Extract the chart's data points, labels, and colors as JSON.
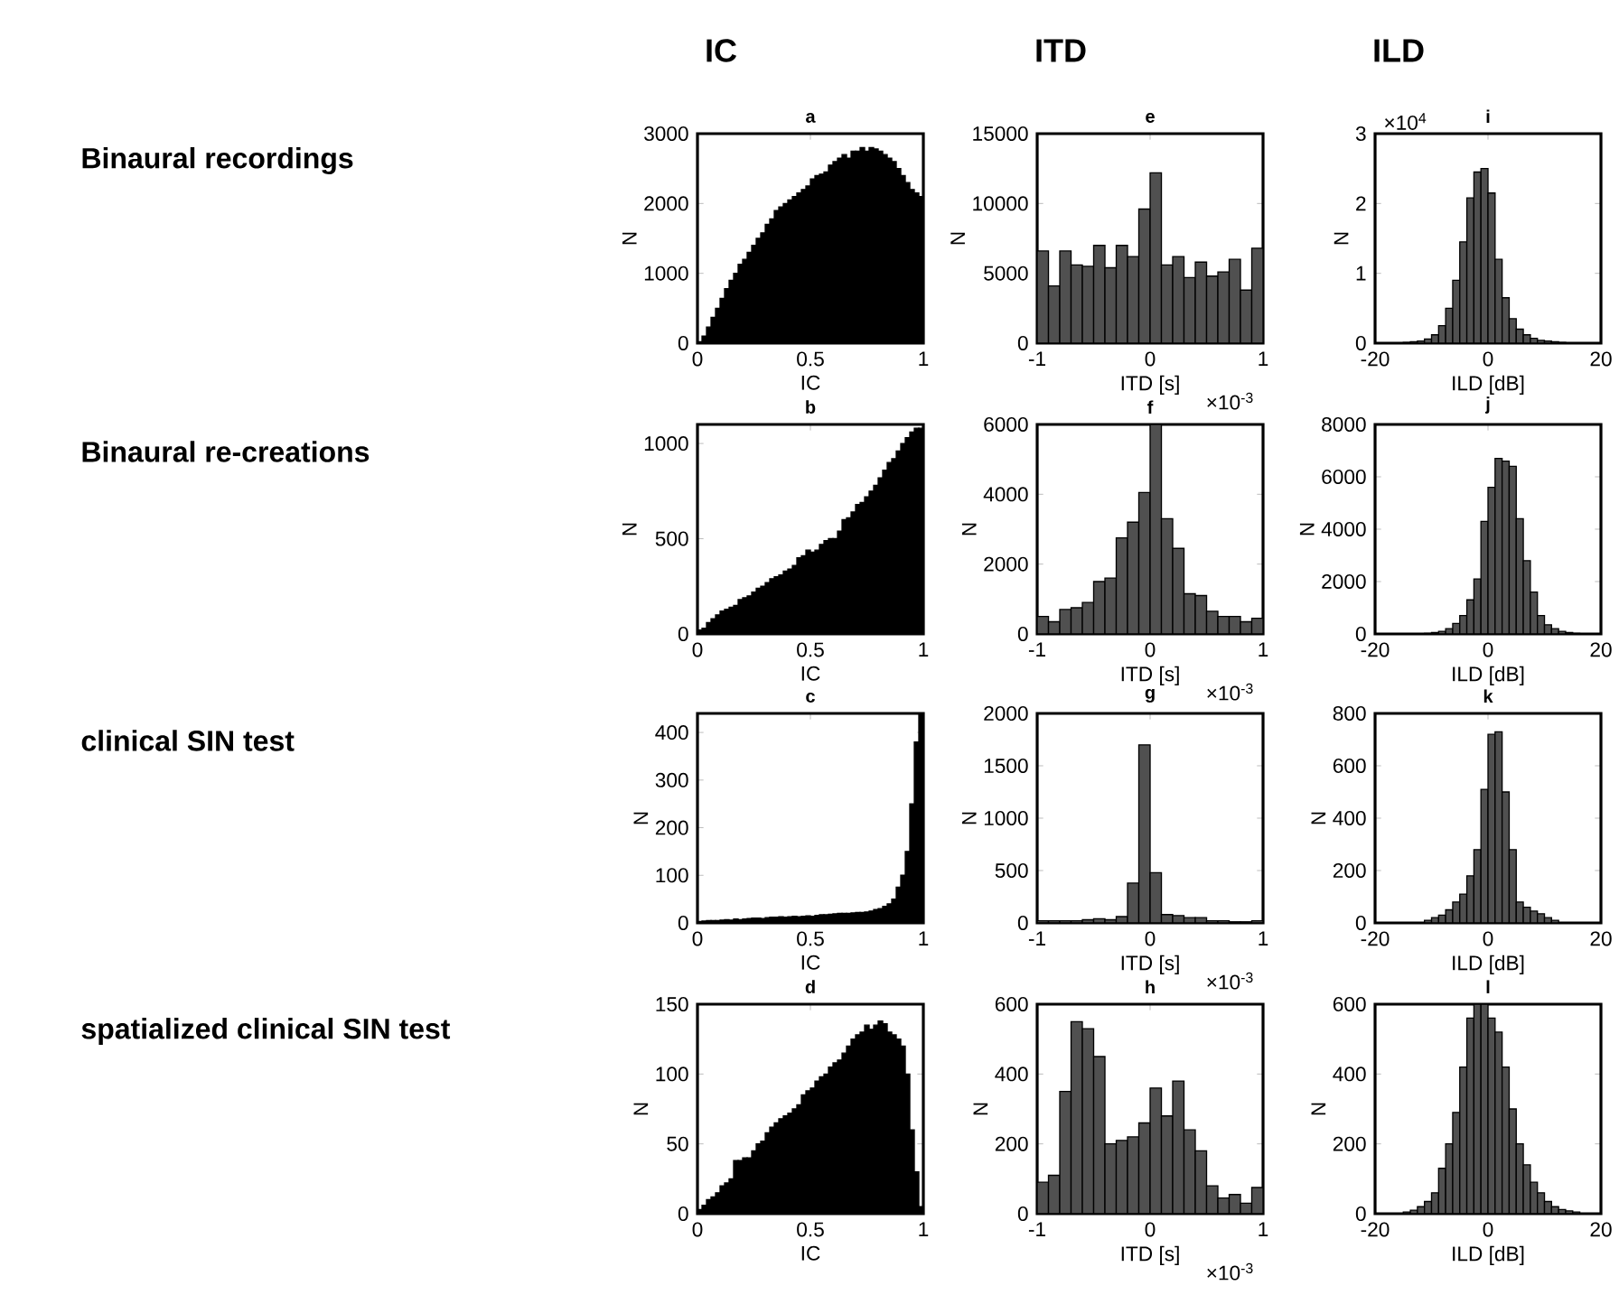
{
  "chart_data": [
    {
      "type": "histogram",
      "title": "a",
      "xlabel": "IC",
      "ylabel": "N",
      "color": "#000000",
      "xlim": [
        0,
        1
      ],
      "ylim": [
        0,
        3000
      ],
      "xticks": [
        0,
        0.5,
        1
      ],
      "yticks": [
        0,
        1000,
        2000,
        3000
      ],
      "bins": [
        0,
        0.02,
        0.04,
        0.06,
        0.08,
        0.1,
        0.12,
        0.14,
        0.16,
        0.18,
        0.2,
        0.22,
        0.24,
        0.26,
        0.28,
        0.3,
        0.32,
        0.34,
        0.36,
        0.38,
        0.4,
        0.42,
        0.44,
        0.46,
        0.48,
        0.5,
        0.52,
        0.54,
        0.56,
        0.58,
        0.6,
        0.62,
        0.64,
        0.66,
        0.68,
        0.7,
        0.72,
        0.74,
        0.76,
        0.78,
        0.8,
        0.82,
        0.84,
        0.86,
        0.88,
        0.9,
        0.92,
        0.94,
        0.96,
        0.98,
        1
      ],
      "values": [
        20,
        100,
        230,
        370,
        500,
        640,
        780,
        900,
        1000,
        1130,
        1200,
        1300,
        1400,
        1500,
        1580,
        1700,
        1780,
        1900,
        1950,
        2000,
        2050,
        2100,
        2150,
        2200,
        2250,
        2350,
        2400,
        2420,
        2450,
        2550,
        2600,
        2650,
        2700,
        2650,
        2750,
        2750,
        2800,
        2750,
        2800,
        2780,
        2750,
        2700,
        2650,
        2600,
        2500,
        2400,
        2300,
        2200,
        2150,
        2100
      ]
    },
    {
      "type": "histogram",
      "title": "b",
      "xlabel": "IC",
      "ylabel": "N",
      "color": "#000000",
      "xlim": [
        0,
        1
      ],
      "ylim": [
        0,
        1100
      ],
      "xticks": [
        0,
        0.5,
        1
      ],
      "yticks": [
        0,
        500,
        1000
      ],
      "bins": [
        0,
        0.02,
        0.04,
        0.06,
        0.08,
        0.1,
        0.12,
        0.14,
        0.16,
        0.18,
        0.2,
        0.22,
        0.24,
        0.26,
        0.28,
        0.3,
        0.32,
        0.34,
        0.36,
        0.38,
        0.4,
        0.42,
        0.44,
        0.46,
        0.48,
        0.5,
        0.52,
        0.54,
        0.56,
        0.58,
        0.6,
        0.62,
        0.64,
        0.66,
        0.68,
        0.7,
        0.72,
        0.74,
        0.76,
        0.78,
        0.8,
        0.82,
        0.84,
        0.86,
        0.88,
        0.9,
        0.92,
        0.94,
        0.96,
        0.98,
        1
      ],
      "values": [
        20,
        30,
        60,
        80,
        100,
        120,
        130,
        140,
        150,
        180,
        190,
        200,
        220,
        240,
        250,
        270,
        290,
        300,
        310,
        330,
        340,
        360,
        400,
        410,
        440,
        430,
        440,
        470,
        490,
        500,
        500,
        540,
        600,
        610,
        640,
        680,
        690,
        720,
        750,
        780,
        820,
        860,
        900,
        920,
        960,
        1000,
        1030,
        1060,
        1080,
        1080
      ]
    },
    {
      "type": "histogram",
      "title": "c",
      "xlabel": "IC",
      "ylabel": "N",
      "color": "#000000",
      "xlim": [
        0,
        1
      ],
      "ylim": [
        0,
        440
      ],
      "xticks": [
        0,
        0.5,
        1
      ],
      "yticks": [
        0,
        100,
        200,
        300,
        400
      ],
      "bins": [
        0,
        0.02,
        0.04,
        0.06,
        0.08,
        0.1,
        0.12,
        0.14,
        0.16,
        0.18,
        0.2,
        0.22,
        0.24,
        0.26,
        0.28,
        0.3,
        0.32,
        0.34,
        0.36,
        0.38,
        0.4,
        0.42,
        0.44,
        0.46,
        0.48,
        0.5,
        0.52,
        0.54,
        0.56,
        0.58,
        0.6,
        0.62,
        0.64,
        0.66,
        0.68,
        0.7,
        0.72,
        0.74,
        0.76,
        0.78,
        0.8,
        0.82,
        0.84,
        0.86,
        0.88,
        0.9,
        0.92,
        0.94,
        0.96,
        0.98,
        1
      ],
      "values": [
        3,
        4,
        5,
        5,
        5,
        6,
        7,
        6,
        8,
        7,
        8,
        9,
        10,
        10,
        9,
        11,
        12,
        12,
        13,
        12,
        13,
        14,
        13,
        14,
        15,
        14,
        16,
        17,
        17,
        18,
        19,
        20,
        20,
        20,
        21,
        22,
        22,
        23,
        25,
        28,
        30,
        35,
        40,
        50,
        75,
        100,
        150,
        250,
        380,
        440
      ]
    },
    {
      "type": "histogram",
      "title": "d",
      "xlabel": "IC",
      "ylabel": "N",
      "color": "#000000",
      "xlim": [
        0,
        1
      ],
      "ylim": [
        0,
        150
      ],
      "xticks": [
        0,
        0.5,
        1
      ],
      "yticks": [
        0,
        50,
        100,
        150
      ],
      "bins": [
        0,
        0.02,
        0.04,
        0.06,
        0.08,
        0.1,
        0.12,
        0.14,
        0.16,
        0.18,
        0.2,
        0.22,
        0.24,
        0.26,
        0.28,
        0.3,
        0.32,
        0.34,
        0.36,
        0.38,
        0.4,
        0.42,
        0.44,
        0.46,
        0.48,
        0.5,
        0.52,
        0.54,
        0.56,
        0.58,
        0.6,
        0.62,
        0.64,
        0.66,
        0.68,
        0.7,
        0.72,
        0.74,
        0.76,
        0.78,
        0.8,
        0.82,
        0.84,
        0.86,
        0.88,
        0.9,
        0.92,
        0.94,
        0.96,
        0.98,
        1
      ],
      "values": [
        3,
        6,
        10,
        12,
        15,
        20,
        22,
        25,
        38,
        38,
        40,
        40,
        45,
        50,
        52,
        58,
        62,
        65,
        68,
        70,
        72,
        75,
        78,
        85,
        88,
        90,
        95,
        98,
        100,
        105,
        108,
        110,
        115,
        120,
        125,
        128,
        130,
        135,
        132,
        135,
        138,
        136,
        130,
        128,
        125,
        120,
        100,
        60,
        30,
        5
      ]
    },
    {
      "type": "histogram",
      "title": "e",
      "xlabel": "ITD [s]",
      "ylabel": "N",
      "color": "#505050",
      "xlim": [
        -1,
        1
      ],
      "ylim": [
        0,
        15000
      ],
      "xticks": [
        -1,
        0,
        1
      ],
      "yticks": [
        0,
        5000,
        10000,
        15000
      ],
      "annotations": [
        "×10$^{-3}$"
      ],
      "bins": [
        -1,
        -0.9,
        -0.8,
        -0.7,
        -0.6,
        -0.5,
        -0.4,
        -0.3,
        -0.2,
        -0.1,
        0,
        0.1,
        0.2,
        0.3,
        0.4,
        0.5,
        0.6,
        0.7,
        0.8,
        0.9,
        1
      ],
      "values": [
        6600,
        4100,
        6600,
        5600,
        5500,
        7000,
        5400,
        7000,
        6200,
        9600,
        12200,
        5600,
        6200,
        4700,
        5800,
        4800,
        5100,
        6000,
        3800,
        6800
      ]
    },
    {
      "type": "histogram",
      "title": "f",
      "xlabel": "ITD [s]",
      "ylabel": "N",
      "color": "#505050",
      "xlim": [
        -1,
        1
      ],
      "ylim": [
        0,
        6000
      ],
      "xticks": [
        -1,
        0,
        1
      ],
      "yticks": [
        0,
        2000,
        4000,
        6000
      ],
      "annotations": [
        "×10$^{-3}$"
      ],
      "bins": [
        -1,
        -0.9,
        -0.8,
        -0.7,
        -0.6,
        -0.5,
        -0.4,
        -0.3,
        -0.2,
        -0.1,
        0,
        0.1,
        0.2,
        0.3,
        0.4,
        0.5,
        0.6,
        0.7,
        0.8,
        0.9,
        1
      ],
      "values": [
        500,
        350,
        700,
        750,
        900,
        1500,
        1600,
        2750,
        3200,
        4050,
        6000,
        3300,
        2450,
        1150,
        1100,
        650,
        500,
        500,
        350,
        450
      ]
    },
    {
      "type": "histogram",
      "title": "g",
      "xlabel": "ITD [s]",
      "ylabel": "N",
      "color": "#505050",
      "xlim": [
        -1,
        1
      ],
      "ylim": [
        0,
        2000
      ],
      "xticks": [
        -1,
        0,
        1
      ],
      "yticks": [
        0,
        500,
        1000,
        1500,
        2000
      ],
      "annotations": [
        "×10$^{-3}$"
      ],
      "bins": [
        -1,
        -0.9,
        -0.8,
        -0.7,
        -0.6,
        -0.5,
        -0.4,
        -0.3,
        -0.2,
        -0.1,
        0,
        0.1,
        0.2,
        0.3,
        0.4,
        0.5,
        0.6,
        0.7,
        0.8,
        0.9,
        1
      ],
      "values": [
        20,
        20,
        20,
        20,
        30,
        40,
        30,
        60,
        380,
        1700,
        480,
        80,
        70,
        50,
        50,
        20,
        20,
        10,
        10,
        20
      ]
    },
    {
      "type": "histogram",
      "title": "h",
      "xlabel": "ITD [s]",
      "ylabel": "N",
      "color": "#505050",
      "xlim": [
        -1,
        1
      ],
      "ylim": [
        0,
        600
      ],
      "xticks": [
        -1,
        0,
        1
      ],
      "yticks": [
        0,
        200,
        400,
        600
      ],
      "annotations": [
        "×10$^{-3}$"
      ],
      "bins": [
        -1,
        -0.9,
        -0.8,
        -0.7,
        -0.6,
        -0.5,
        -0.4,
        -0.3,
        -0.2,
        -0.1,
        0,
        0.1,
        0.2,
        0.3,
        0.4,
        0.5,
        0.6,
        0.7,
        0.8,
        0.9,
        1
      ],
      "values": [
        90,
        110,
        350,
        550,
        530,
        450,
        200,
        210,
        220,
        260,
        360,
        280,
        380,
        240,
        180,
        80,
        45,
        55,
        30,
        75
      ]
    },
    {
      "type": "histogram",
      "title": "i",
      "xlabel": "ILD [dB]",
      "ylabel": "N",
      "color": "#505050",
      "xlim": [
        -20,
        20
      ],
      "ylim": [
        0,
        3
      ],
      "xticks": [
        -20,
        0,
        20
      ],
      "yticks": [
        0,
        1,
        2,
        3
      ],
      "annotations": [
        "×10$^{4}$"
      ],
      "bins": [
        -20,
        -18.75,
        -17.5,
        -16.25,
        -15,
        -13.75,
        -12.5,
        -11.25,
        -10,
        -8.75,
        -7.5,
        -6.25,
        -5,
        -3.75,
        -2.5,
        -1.25,
        0,
        1.25,
        2.5,
        3.75,
        5,
        6.25,
        7.5,
        8.75,
        10,
        11.25,
        12.5,
        13.75,
        15,
        16.25,
        17.5,
        18.75,
        20
      ],
      "values": [
        null,
        null,
        null,
        null,
        0.01,
        0.02,
        0.03,
        0.06,
        0.12,
        0.25,
        0.5,
        0.9,
        1.45,
        2.08,
        2.45,
        2.5,
        2.15,
        1.2,
        0.65,
        0.35,
        0.2,
        0.12,
        0.07,
        0.04,
        0.03,
        0.02,
        0.01,
        null,
        null,
        null,
        null,
        null
      ]
    },
    {
      "type": "histogram",
      "title": "j",
      "xlabel": "ILD [dB]",
      "ylabel": "N",
      "color": "#505050",
      "xlim": [
        -20,
        20
      ],
      "ylim": [
        0,
        8000
      ],
      "xticks": [
        -20,
        0,
        20
      ],
      "yticks": [
        0,
        2000,
        4000,
        6000,
        8000
      ],
      "bins": [
        -20,
        -18.75,
        -17.5,
        -16.25,
        -15,
        -13.75,
        -12.5,
        -11.25,
        -10,
        -8.75,
        -7.5,
        -6.25,
        -5,
        -3.75,
        -2.5,
        -1.25,
        0,
        1.25,
        2.5,
        3.75,
        5,
        6.25,
        7.5,
        8.75,
        10,
        11.25,
        12.5,
        13.75,
        15,
        16.25,
        17.5,
        18.75,
        20
      ],
      "values": [
        null,
        null,
        null,
        null,
        null,
        null,
        null,
        20,
        50,
        100,
        200,
        400,
        700,
        1300,
        2100,
        4300,
        5600,
        6700,
        6600,
        6400,
        4400,
        2800,
        1600,
        700,
        350,
        200,
        100,
        50,
        20,
        null,
        null,
        null
      ]
    },
    {
      "type": "histogram",
      "title": "k",
      "xlabel": "ILD [dB]",
      "ylabel": "N",
      "color": "#505050",
      "xlim": [
        -20,
        20
      ],
      "ylim": [
        0,
        800
      ],
      "xticks": [
        -20,
        0,
        20
      ],
      "yticks": [
        0,
        200,
        400,
        600,
        800
      ],
      "bins": [
        -20,
        -18.75,
        -17.5,
        -16.25,
        -15,
        -13.75,
        -12.5,
        -11.25,
        -10,
        -8.75,
        -7.5,
        -6.25,
        -5,
        -3.75,
        -2.5,
        -1.25,
        0,
        1.25,
        2.5,
        3.75,
        5,
        6.25,
        7.5,
        8.75,
        10,
        11.25,
        12.5,
        13.75,
        15,
        16.25,
        17.5,
        18.75,
        20
      ],
      "values": [
        null,
        null,
        null,
        null,
        null,
        null,
        null,
        10,
        20,
        30,
        50,
        80,
        110,
        180,
        280,
        510,
        720,
        730,
        500,
        280,
        80,
        60,
        45,
        35,
        20,
        10,
        null,
        null,
        null,
        null,
        null,
        null
      ]
    },
    {
      "type": "histogram",
      "title": "l",
      "xlabel": "ILD [dB]",
      "ylabel": "N",
      "color": "#505050",
      "xlim": [
        -20,
        20
      ],
      "ylim": [
        0,
        600
      ],
      "xticks": [
        -20,
        0,
        20
      ],
      "yticks": [
        0,
        200,
        400,
        600
      ],
      "bins": [
        -20,
        -18.75,
        -17.5,
        -16.25,
        -15,
        -13.75,
        -12.5,
        -11.25,
        -10,
        -8.75,
        -7.5,
        -6.25,
        -5,
        -3.75,
        -2.5,
        -1.25,
        0,
        1.25,
        2.5,
        3.75,
        5,
        6.25,
        7.5,
        8.75,
        10,
        11.25,
        12.5,
        13.75,
        15,
        16.25,
        17.5,
        18.75,
        20
      ],
      "values": [
        null,
        null,
        null,
        null,
        5,
        10,
        20,
        35,
        60,
        130,
        200,
        290,
        420,
        560,
        600,
        600,
        560,
        520,
        420,
        300,
        200,
        140,
        90,
        60,
        35,
        20,
        12,
        8,
        5,
        null,
        null,
        null
      ]
    },
    {
      "type": "other",
      "annotations": [
        "IC",
        "ITD",
        "ILD",
        "Binaural recordings",
        "Binaural re-creations",
        "clinical SIN test",
        "spatialized clinical SIN test"
      ]
    }
  ]
}
